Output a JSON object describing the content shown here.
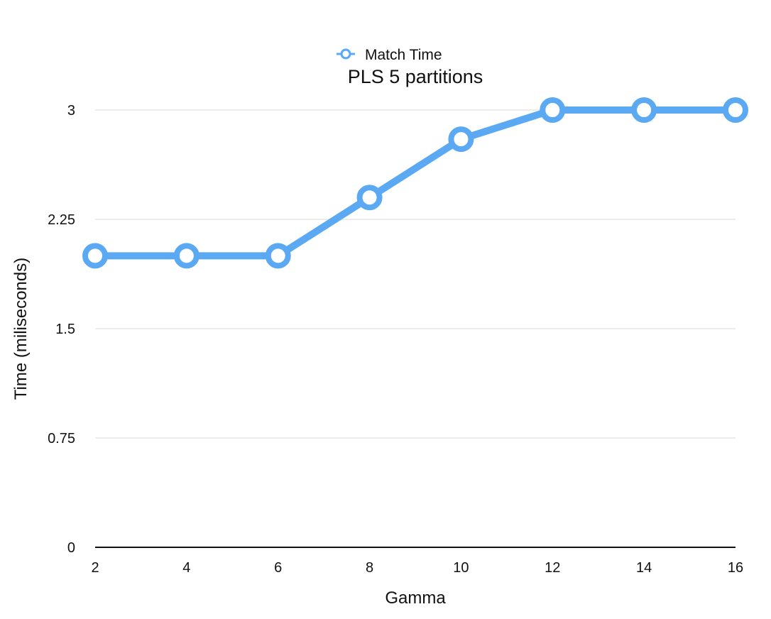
{
  "chart_data": {
    "type": "line",
    "title": "PLS 5 partitions",
    "xlabel": "Gamma",
    "ylabel": "Time (miliseconds)",
    "x": [
      2,
      4,
      6,
      8,
      10,
      12,
      14,
      16
    ],
    "x_tick_labels": [
      "2",
      "4",
      "6",
      "8",
      "10",
      "12",
      "14",
      "16"
    ],
    "y_ticks": [
      0,
      0.75,
      1.5,
      2.25,
      3
    ],
    "y_tick_labels": [
      "0",
      "0.75",
      "1.5",
      "2.25",
      "3"
    ],
    "ylim": [
      0,
      3
    ],
    "xlim": [
      2,
      16
    ],
    "grid": true,
    "legend_position": "top-center",
    "series": [
      {
        "name": "Match Time",
        "color": "#5aa9f2",
        "values": [
          2.0,
          2.0,
          2.0,
          2.4,
          2.8,
          3.0,
          3.0,
          3.0
        ]
      }
    ]
  }
}
